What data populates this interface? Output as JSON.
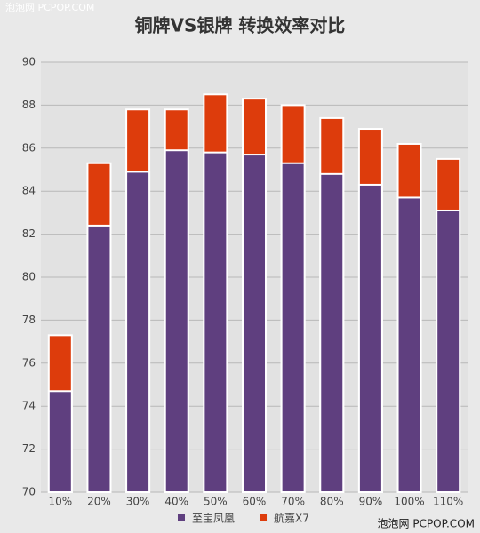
{
  "watermark_top": "泡泡网 PCPOP.COM",
  "watermark_bottom": "泡泡网 PCPOP.COM",
  "chart_data": {
    "type": "bar",
    "title": "铜牌VS银牌 转换效率对比",
    "categories": [
      "10%",
      "20%",
      "30%",
      "40%",
      "50%",
      "60%",
      "70%",
      "80%",
      "90%",
      "100%",
      "110%"
    ],
    "series": [
      {
        "name": "航嘉X7",
        "color": "#dd3c0c",
        "values": [
          77.3,
          85.3,
          87.8,
          87.8,
          88.5,
          88.3,
          88.0,
          87.4,
          86.9,
          86.2,
          85.5
        ]
      },
      {
        "name": "至宝凤凰",
        "color": "#5f3f7f",
        "values": [
          74.7,
          82.4,
          84.9,
          85.9,
          85.8,
          85.7,
          85.3,
          84.8,
          84.3,
          83.7,
          83.1
        ]
      }
    ],
    "legend_order": [
      1,
      0
    ],
    "ylim": [
      70,
      90
    ],
    "yticks": [
      70,
      72,
      74,
      76,
      78,
      80,
      82,
      84,
      86,
      88,
      90
    ],
    "grid": true
  }
}
